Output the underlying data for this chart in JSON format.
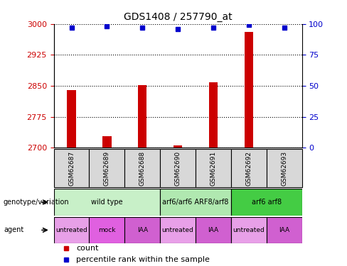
{
  "title": "GDS1408 / 257790_at",
  "samples": [
    "GSM62687",
    "GSM62689",
    "GSM62688",
    "GSM62690",
    "GSM62691",
    "GSM62692",
    "GSM62693"
  ],
  "count_values": [
    2840,
    2728,
    2851,
    2705,
    2858,
    2980,
    2701
  ],
  "percentile_values": [
    97,
    98,
    97,
    96,
    97,
    99,
    97
  ],
  "ylim_left": [
    2700,
    3000
  ],
  "ylim_right": [
    0,
    100
  ],
  "yticks_left": [
    2700,
    2775,
    2850,
    2925,
    3000
  ],
  "yticks_right": [
    0,
    25,
    50,
    75,
    100
  ],
  "genotype_groups": [
    {
      "label": "wild type",
      "start": 0,
      "end": 3,
      "color": "#c8f0c8"
    },
    {
      "label": "arf6/arf6 ARF8/arf8",
      "start": 3,
      "end": 5,
      "color": "#b0e8b0"
    },
    {
      "label": "arf6 arf8",
      "start": 5,
      "end": 7,
      "color": "#44cc44"
    }
  ],
  "agent_groups": [
    {
      "label": "untreated",
      "start": 0,
      "end": 1,
      "color": "#e8a0e8"
    },
    {
      "label": "mock",
      "start": 1,
      "end": 2,
      "color": "#e060e0"
    },
    {
      "label": "IAA",
      "start": 2,
      "end": 3,
      "color": "#d060d0"
    },
    {
      "label": "untreated",
      "start": 3,
      "end": 4,
      "color": "#e8a0e8"
    },
    {
      "label": "IAA",
      "start": 4,
      "end": 5,
      "color": "#d060d0"
    },
    {
      "label": "untreated",
      "start": 5,
      "end": 6,
      "color": "#e8a0e8"
    },
    {
      "label": "IAA",
      "start": 6,
      "end": 7,
      "color": "#d060d0"
    }
  ],
  "bar_color": "#cc0000",
  "dot_color": "#0000cc",
  "bar_width": 0.25,
  "left_axis_color": "#cc0000",
  "right_axis_color": "#0000cc",
  "legend_count_color": "#cc0000",
  "legend_dot_color": "#0000cc",
  "sample_box_color": "#d8d8d8"
}
